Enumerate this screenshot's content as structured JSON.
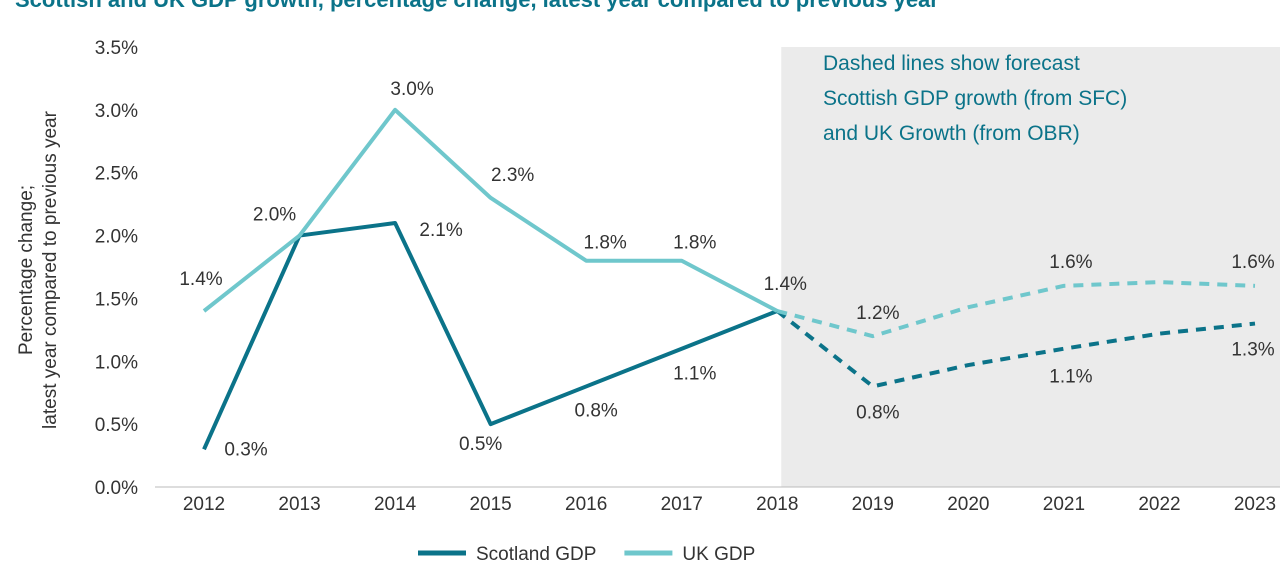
{
  "chart_data": {
    "type": "line",
    "title": "Scottish and UK GDP growth, percentage change, latest year compared to previous year",
    "y_label": [
      "Percentage change;",
      "latest year compared to previous year"
    ],
    "annotation": [
      "Dashed lines show forecast",
      "Scottish GDP growth (from SFC)",
      "and UK Growth (from OBR)"
    ],
    "forecast_from": "2018",
    "categories": [
      "2012",
      "2013",
      "2014",
      "2015",
      "2016",
      "2017",
      "2018",
      "2019",
      "2020",
      "2021",
      "2022",
      "2023"
    ],
    "series": [
      {
        "name": "Scotland GDP",
        "color": "#0b7389",
        "values": [
          0.3,
          2.0,
          2.1,
          0.5,
          0.8,
          1.1,
          1.4,
          0.8,
          0.97,
          1.1,
          1.22,
          1.3
        ],
        "value_labels": [
          "0.3%",
          null,
          "2.1%",
          "0.5%",
          "0.8%",
          "1.1%",
          null,
          "0.8%",
          null,
          "1.1%",
          null,
          "1.3%"
        ]
      },
      {
        "name": "UK GDP",
        "color": "#6fc7cc",
        "values": [
          1.4,
          2.0,
          3.0,
          2.3,
          1.8,
          1.8,
          1.4,
          1.2,
          1.43,
          1.6,
          1.63,
          1.6
        ],
        "value_labels": [
          "1.4%",
          "2.0%",
          "3.0%",
          "2.3%",
          "1.8%",
          "1.8%",
          "1.4%",
          "1.2%",
          null,
          "1.6%",
          null,
          "1.6%"
        ]
      }
    ],
    "ylim": [
      0,
      3.5
    ],
    "yticks": [
      {
        "value": 0,
        "label": "0.0%"
      },
      {
        "value": 0.5,
        "label": "0.5%"
      },
      {
        "value": 1,
        "label": "1.0%"
      },
      {
        "value": 1.5,
        "label": "1.5%"
      },
      {
        "value": 2,
        "label": "2.0%"
      },
      {
        "value": 2.5,
        "label": "2.5%"
      },
      {
        "value": 3,
        "label": "3.0%"
      },
      {
        "value": 3.5,
        "label": "3.5%"
      }
    ],
    "legend": "bottom"
  }
}
